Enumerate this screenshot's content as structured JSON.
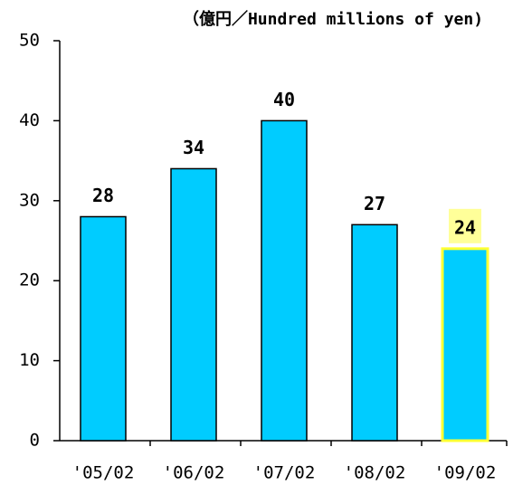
{
  "chart_data": {
    "type": "bar",
    "title": "（億円／Hundred millions of yen)",
    "categories": [
      "'05/02",
      "'06/02",
      "'07/02",
      "'08/02",
      "'09/02"
    ],
    "values": [
      28,
      34,
      40,
      27,
      24
    ],
    "color": "#00ccff",
    "highlight": {
      "index": 4,
      "border_color": "#ffff33",
      "label_background": "#ffff99"
    },
    "ylim": [
      0,
      50
    ],
    "yticks": [
      0,
      10,
      20,
      30,
      40,
      50
    ],
    "grid": false
  }
}
